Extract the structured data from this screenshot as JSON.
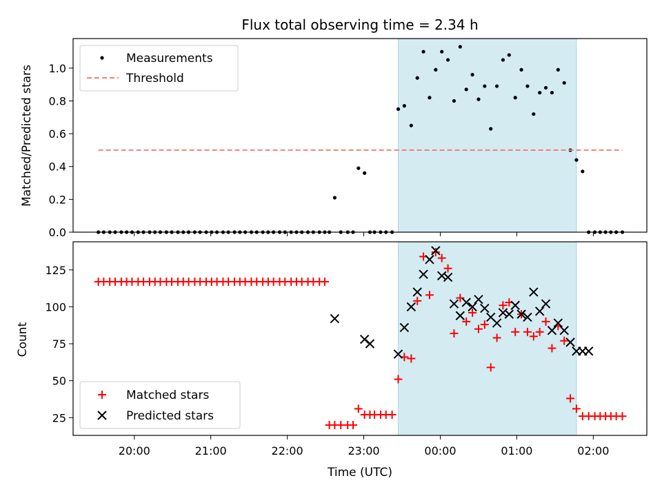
{
  "chart_data": [
    {
      "type": "scatter",
      "title": "Flux total observing time = 2.34 h",
      "ylabel": "Matched/Predicted stars",
      "xlabel": "",
      "x_unit": "hours relative to 00:00 UTC",
      "xlim": [
        -4.8,
        2.7
      ],
      "ylim": [
        0,
        1.18
      ],
      "yticks": [
        "0.0",
        "0.2",
        "0.4",
        "0.6",
        "0.8",
        "1.0"
      ],
      "shaded_span": [
        -0.55,
        1.78
      ],
      "shade_color": "#d4ebf2",
      "legend_position": "upper-left",
      "series": [
        {
          "name": "Measurements",
          "marker": "dot",
          "color": "#000000",
          "x": [
            -4.47,
            -4.4,
            -4.32,
            -4.25,
            -4.17,
            -4.1,
            -4.03,
            -3.95,
            -3.88,
            -3.8,
            -3.73,
            -3.66,
            -3.58,
            -3.51,
            -3.43,
            -3.36,
            -3.29,
            -3.21,
            -3.14,
            -3.06,
            -2.99,
            -2.92,
            -2.84,
            -2.77,
            -2.69,
            -2.62,
            -2.55,
            -2.47,
            -2.4,
            -2.32,
            -2.25,
            -2.18,
            -2.1,
            -2.03,
            -1.95,
            -1.88,
            -1.81,
            -1.73,
            -1.66,
            -1.58,
            -1.51,
            -1.45,
            -1.38,
            -1.3,
            -1.21,
            -1.14,
            -1.07,
            -0.99,
            -0.92,
            -0.86,
            -0.78,
            -0.71,
            -0.63,
            -0.55,
            -0.47,
            -0.38,
            -0.3,
            -0.22,
            -0.14,
            -0.06,
            0.02,
            0.1,
            0.18,
            0.26,
            0.34,
            0.42,
            0.5,
            0.58,
            0.66,
            0.74,
            0.82,
            0.9,
            0.98,
            1.06,
            1.14,
            1.22,
            1.3,
            1.38,
            1.46,
            1.54,
            1.62,
            1.7,
            1.78,
            1.86,
            1.94,
            2.02,
            2.09,
            2.16,
            2.23,
            2.3,
            2.38
          ],
          "y": [
            0,
            0,
            0,
            0,
            0,
            0,
            0,
            0,
            0,
            0,
            0,
            0,
            0,
            0,
            0,
            0,
            0,
            0,
            0,
            0,
            0,
            0,
            0,
            0,
            0,
            0,
            0,
            0,
            0,
            0,
            0,
            0,
            0,
            0,
            0,
            0,
            0,
            0,
            0,
            0,
            0,
            0,
            0.21,
            0,
            0,
            0,
            0.39,
            0.36,
            0,
            0,
            0,
            0,
            0,
            0.75,
            0.77,
            0.65,
            0.94,
            1.1,
            0.82,
            0.99,
            1.1,
            1.05,
            0.8,
            1.13,
            0.87,
            0.96,
            0.81,
            0.89,
            0.63,
            0.89,
            1.05,
            1.08,
            0.82,
            0.99,
            0.89,
            0.72,
            0.85,
            0.88,
            0.85,
            0.99,
            0.91,
            0.5,
            0.44,
            0.37,
            0,
            0,
            0,
            0,
            0,
            0,
            0
          ]
        },
        {
          "name": "Threshold",
          "marker": "dashed-line",
          "color": "#f08080",
          "x": [
            -4.47,
            2.38
          ],
          "y": [
            0.5,
            0.5
          ]
        }
      ]
    },
    {
      "type": "scatter",
      "title": "",
      "ylabel": "Count",
      "xlabel": "Time (UTC)",
      "x_unit": "hours relative to 00:00 UTC",
      "xlim": [
        -4.8,
        2.7
      ],
      "ylim": [
        13,
        144
      ],
      "yticks": [
        "25",
        "50",
        "75",
        "100",
        "125"
      ],
      "xticks": [
        "20:00",
        "21:00",
        "22:00",
        "23:00",
        "00:00",
        "01:00",
        "02:00"
      ],
      "shaded_span": [
        -0.55,
        1.78
      ],
      "shade_color": "#d4ebf2",
      "legend_position": "lower-left",
      "series": [
        {
          "name": "Matched stars",
          "marker": "plus",
          "color": "#ff0000",
          "x": [
            -4.47,
            -4.4,
            -4.32,
            -4.25,
            -4.17,
            -4.1,
            -4.03,
            -3.95,
            -3.88,
            -3.8,
            -3.73,
            -3.66,
            -3.58,
            -3.51,
            -3.43,
            -3.36,
            -3.29,
            -3.21,
            -3.14,
            -3.06,
            -2.99,
            -2.92,
            -2.84,
            -2.77,
            -2.69,
            -2.62,
            -2.55,
            -2.47,
            -2.4,
            -2.32,
            -2.25,
            -2.18,
            -2.1,
            -2.03,
            -1.95,
            -1.88,
            -1.81,
            -1.73,
            -1.66,
            -1.58,
            -1.51,
            -1.45,
            -1.38,
            -1.3,
            -1.21,
            -1.14,
            -1.07,
            -0.99,
            -0.92,
            -0.86,
            -0.78,
            -0.71,
            -0.63,
            -0.55,
            -0.47,
            -0.38,
            -0.3,
            -0.22,
            -0.14,
            -0.06,
            0.02,
            0.1,
            0.18,
            0.26,
            0.34,
            0.42,
            0.5,
            0.58,
            0.66,
            0.74,
            0.82,
            0.9,
            0.98,
            1.06,
            1.14,
            1.22,
            1.3,
            1.38,
            1.46,
            1.54,
            1.62,
            1.7,
            1.78,
            1.86,
            1.94,
            2.02,
            2.09,
            2.16,
            2.23,
            2.3,
            2.38
          ],
          "y": [
            117,
            117,
            117,
            117,
            117,
            117,
            117,
            117,
            117,
            117,
            117,
            117,
            117,
            117,
            117,
            117,
            117,
            117,
            117,
            117,
            117,
            117,
            117,
            117,
            117,
            117,
            117,
            117,
            117,
            117,
            117,
            117,
            117,
            117,
            117,
            117,
            117,
            117,
            117,
            117,
            117,
            20,
            20,
            20,
            20,
            20,
            31,
            27,
            27,
            27,
            27,
            27,
            27,
            51,
            66,
            65,
            104,
            134,
            108,
            137,
            133,
            126,
            82,
            106,
            90,
            96,
            85,
            88,
            59,
            79,
            101,
            103,
            83,
            95,
            83,
            80,
            83,
            90,
            72,
            87,
            77,
            38,
            31,
            26,
            26,
            26,
            26,
            26,
            26,
            26,
            26
          ]
        },
        {
          "name": "Predicted stars",
          "marker": "x",
          "color": "#000000",
          "x": [
            -1.38,
            -0.99,
            -0.92,
            -0.55,
            -0.47,
            -0.38,
            -0.3,
            -0.22,
            -0.14,
            -0.06,
            0.02,
            0.1,
            0.18,
            0.26,
            0.34,
            0.42,
            0.5,
            0.58,
            0.66,
            0.74,
            0.82,
            0.9,
            0.98,
            1.06,
            1.14,
            1.22,
            1.3,
            1.38,
            1.46,
            1.54,
            1.62,
            1.7,
            1.78,
            1.86,
            1.94
          ],
          "y": [
            92,
            78,
            75,
            68,
            86,
            100,
            110,
            122,
            132,
            138,
            121,
            120,
            102,
            94,
            103,
            100,
            105,
            99,
            93,
            89,
            96,
            95,
            101,
            95,
            93,
            110,
            97,
            102,
            84,
            89,
            84,
            76,
            70,
            70,
            70
          ]
        }
      ]
    }
  ]
}
